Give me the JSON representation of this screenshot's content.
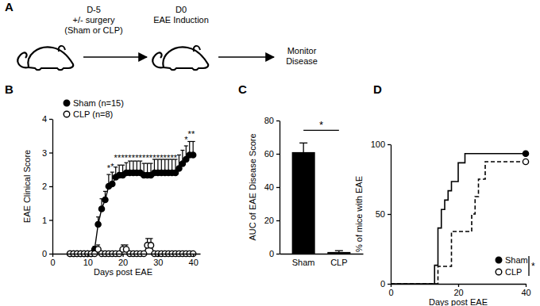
{
  "diagram": {
    "label": "A",
    "steps": [
      {
        "day": "D-5",
        "lines": [
          "+/- surgery",
          "(Sham or CLP)"
        ]
      },
      {
        "day": "D0",
        "lines": [
          "EAE Induction"
        ]
      },
      {
        "lines": [
          "Monitor",
          "Disease"
        ]
      }
    ]
  },
  "chart_data": [
    {
      "type": "line",
      "title": "B",
      "xlabel": "Days post EAE",
      "ylabel": "EAE Clinical Score",
      "xlim": [
        0,
        42
      ],
      "xticks": [
        0,
        10,
        20,
        30,
        40
      ],
      "ylim": [
        0,
        4
      ],
      "yticks": [
        0,
        1,
        2,
        3,
        4
      ],
      "legend": "top-left",
      "x": [
        5,
        6,
        7,
        8,
        9,
        10,
        11,
        12,
        13,
        14,
        15,
        16,
        17,
        18,
        19,
        20,
        21,
        22,
        23,
        24,
        25,
        26,
        27,
        28,
        29,
        30,
        31,
        32,
        33,
        34,
        35,
        36,
        37,
        38,
        39,
        40
      ],
      "series": [
        {
          "name": "Sham (n=15)",
          "color": "#000000",
          "marker": "circle",
          "values": [
            0,
            0,
            0,
            0,
            0,
            0,
            0,
            0.13,
            0.87,
            1.33,
            1.6,
            2.0,
            2.07,
            2.27,
            2.33,
            2.33,
            2.4,
            2.4,
            2.4,
            2.4,
            2.4,
            2.33,
            2.33,
            2.33,
            2.4,
            2.4,
            2.4,
            2.4,
            2.4,
            2.4,
            2.4,
            2.53,
            2.67,
            2.8,
            2.93,
            2.93
          ],
          "errors": [
            0,
            0,
            0,
            0,
            0,
            0,
            0,
            0.09,
            0.22,
            0.3,
            0.25,
            0.35,
            0.35,
            0.3,
            0.3,
            0.3,
            0.3,
            0.35,
            0.35,
            0.35,
            0.35,
            0.35,
            0.35,
            0.35,
            0.4,
            0.4,
            0.4,
            0.4,
            0.4,
            0.4,
            0.4,
            0.4,
            0.4,
            0.4,
            0.4,
            0.4
          ]
        },
        {
          "name": "CLP (n=8)",
          "color": "#000000",
          "marker": "open-circle",
          "values": [
            0,
            0,
            0,
            0,
            0,
            0,
            0,
            0,
            0.13,
            0,
            0,
            0,
            0,
            0,
            0,
            0.13,
            0.13,
            0,
            0,
            0,
            0,
            0,
            0.25,
            0.25,
            0,
            0,
            0,
            0,
            0,
            0,
            0,
            0,
            0,
            0,
            0,
            0
          ],
          "errors": [
            0,
            0,
            0,
            0,
            0,
            0,
            0,
            0,
            0.13,
            0,
            0,
            0,
            0,
            0,
            0,
            0.13,
            0.13,
            0,
            0,
            0,
            0,
            0,
            0.2,
            0.2,
            0,
            0,
            0,
            0,
            0,
            0,
            0,
            0,
            0,
            0,
            0,
            0
          ]
        }
      ],
      "annotations": [
        {
          "x": 16,
          "y": 2.45,
          "text": "*"
        },
        {
          "x": 17,
          "y": 2.5,
          "text": "*"
        },
        {
          "x": 18,
          "y": 2.75,
          "text": "*"
        },
        {
          "x": 19,
          "y": 2.75,
          "text": "*"
        },
        {
          "x": 20,
          "y": 2.75,
          "text": "*"
        },
        {
          "x": 21,
          "y": 2.75,
          "text": "*"
        },
        {
          "x": 22,
          "y": 2.75,
          "text": "*"
        },
        {
          "x": 23,
          "y": 2.75,
          "text": "*"
        },
        {
          "x": 24,
          "y": 2.75,
          "text": "*"
        },
        {
          "x": 25,
          "y": 2.75,
          "text": "*"
        },
        {
          "x": 26,
          "y": 2.75,
          "text": "*"
        },
        {
          "x": 27,
          "y": 2.75,
          "text": "*"
        },
        {
          "x": 28,
          "y": 2.75,
          "text": "*"
        },
        {
          "x": 29,
          "y": 2.75,
          "text": "*"
        },
        {
          "x": 30,
          "y": 2.75,
          "text": "*"
        },
        {
          "x": 31,
          "y": 2.75,
          "text": "*"
        },
        {
          "x": 32,
          "y": 2.75,
          "text": "*"
        },
        {
          "x": 33,
          "y": 2.75,
          "text": "*"
        },
        {
          "x": 34,
          "y": 2.75,
          "text": "*"
        },
        {
          "x": 35,
          "y": 2.75,
          "text": "*"
        },
        {
          "x": 38,
          "y": 3.3,
          "text": "*"
        },
        {
          "x": 39,
          "y": 3.45,
          "text": "*"
        },
        {
          "x": 40,
          "y": 3.45,
          "text": "*"
        }
      ]
    },
    {
      "type": "bar",
      "title": "C",
      "ylabel": "AUC of EAE Disease Score",
      "categories": [
        "Sham",
        "CLP"
      ],
      "values": [
        61,
        1
      ],
      "errors": [
        5.5,
        0.8
      ],
      "color": "#000000",
      "ylim": [
        0,
        80
      ],
      "yticks": [
        0,
        20,
        40,
        60,
        80
      ],
      "annotations": [
        {
          "text": "*"
        }
      ]
    },
    {
      "type": "step",
      "title": "D",
      "xlabel": "Days post EAE",
      "ylabel": "% of mice with EAE",
      "xlim": [
        0,
        40
      ],
      "xticks": [
        0,
        20,
        40
      ],
      "ylim": [
        0,
        100
      ],
      "yticks": [
        0,
        50,
        100
      ],
      "legend": "bottom-right",
      "series": [
        {
          "name": "Sham",
          "color": "#000000",
          "line_style": "solid",
          "marker": "circle",
          "x": [
            0,
            13,
            14,
            15,
            16,
            17,
            18,
            20,
            22,
            40
          ],
          "values": [
            0,
            13.3,
            40,
            53.3,
            60,
            66.7,
            73.3,
            86.7,
            93.3,
            93.3
          ]
        },
        {
          "name": "CLP",
          "color": "#000000",
          "line_style": "dashed",
          "marker": "open-circle",
          "x": [
            0,
            14,
            18,
            24,
            25,
            26,
            28,
            40
          ],
          "values": [
            0,
            12.5,
            37.5,
            50,
            62.5,
            75,
            87.5,
            87.5
          ]
        }
      ],
      "annotations": [
        {
          "text": "*"
        }
      ]
    }
  ]
}
